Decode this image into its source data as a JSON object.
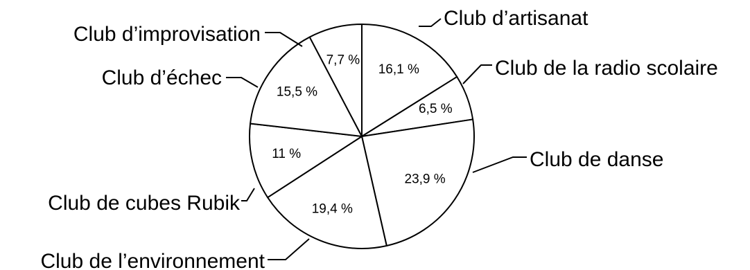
{
  "chart_data": {
    "type": "pie",
    "start": "top",
    "direction": "clockwise",
    "slices": [
      {
        "label": "Club d’artisanat",
        "value": 16.1,
        "value_label": "16,1 %"
      },
      {
        "label": "Club de la radio scolaire",
        "value": 6.5,
        "value_label": "6,5 %"
      },
      {
        "label": "Club de danse",
        "value": 23.9,
        "value_label": "23,9 %"
      },
      {
        "label": "Club de l’environnement",
        "value": 19.4,
        "value_label": "19,4 %"
      },
      {
        "label": "Club de cubes Rubik",
        "value": 11,
        "value_label": "11 %"
      },
      {
        "label": "Club d’échec",
        "value": 15.5,
        "value_label": "15,5 %"
      },
      {
        "label": "Club d’improvisation",
        "value": 7.7,
        "value_label": "7,7 %"
      }
    ]
  }
}
